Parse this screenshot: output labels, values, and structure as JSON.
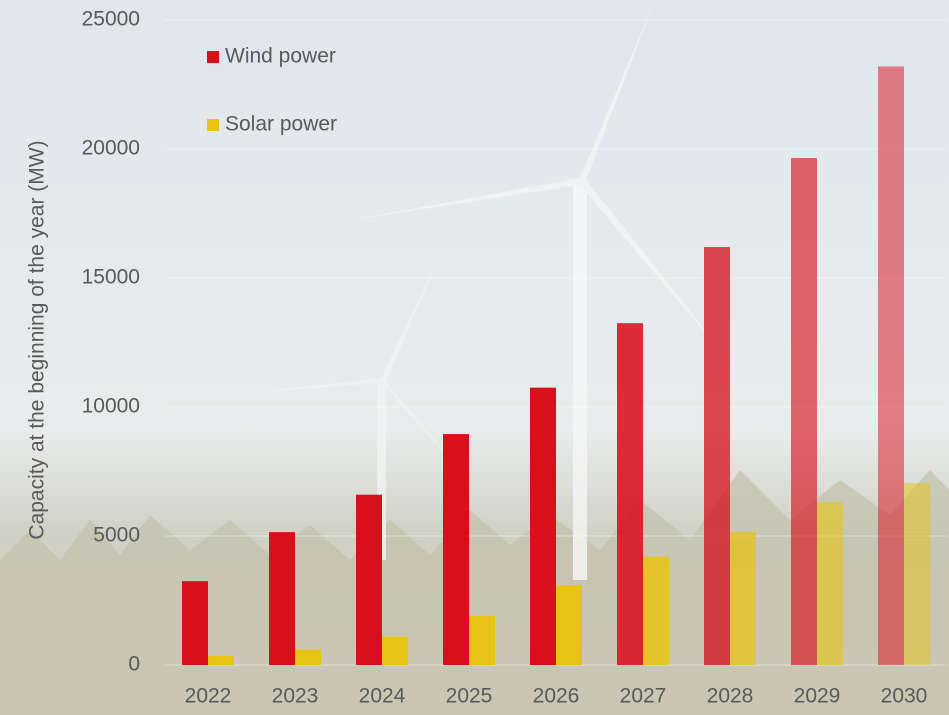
{
  "chart_data": {
    "type": "bar",
    "y_label": "Capacity at the beginning of the year (MW)",
    "categories": [
      "2022",
      "2023",
      "2024",
      "2025",
      "2026",
      "2027",
      "2028",
      "2029",
      "2030"
    ],
    "series": [
      {
        "name": "Wind power",
        "color": "#d8101c",
        "values": [
          3250,
          5150,
          6600,
          8950,
          10750,
          13250,
          16200,
          19650,
          23200
        ]
      },
      {
        "name": "Solar power",
        "color": "#e6c417",
        "values": [
          350,
          600,
          1100,
          1900,
          3100,
          4200,
          5150,
          6300,
          7050
        ]
      }
    ],
    "ylim": [
      0,
      25000
    ],
    "yticks": [
      0,
      5000,
      10000,
      15000,
      20000,
      25000
    ],
    "grid": true
  }
}
